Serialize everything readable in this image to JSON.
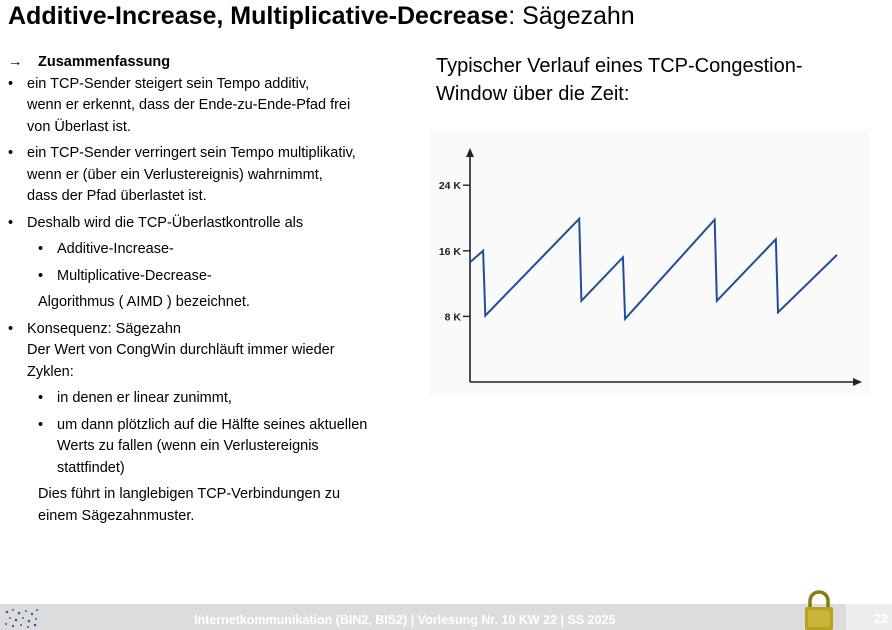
{
  "slide": {
    "title_bold": "Additive-Increase, Multiplicative-Decrease",
    "title_rest": ": Sägezahn",
    "summary_arrow": "→",
    "summary_heading": "Zusammenfassung",
    "bullet_char": "•",
    "bullets": [
      {
        "lines": [
          "ein TCP-Sender steigert sein Tempo additiv,",
          "wenn er erkennt, dass der Ende-zu-Ende-Pfad frei",
          "von Überlast ist."
        ]
      },
      {
        "lines": [
          "ein TCP-Sender verringert sein Tempo multiplikativ,",
          "wenn er (über ein Verlustereignis) wahrnimmt,",
          "dass der Pfad überlastet ist."
        ]
      },
      {
        "lines": [
          "Deshalb wird die TCP-Überlastkontrolle als"
        ]
      }
    ],
    "sub_bullets_a": [
      "Additive-Increase-",
      "Multiplicative-Decrease-"
    ],
    "aimd_line": "Algorithmus  ( AIMD ) bezeichnet.",
    "consequence": {
      "lines": [
        "Konsequenz: Sägezahn",
        "Der Wert von CongWin durchläuft immer wieder",
        "Zyklen:"
      ]
    },
    "sub_bullets_b": [
      {
        "lines": [
          "in denen er linear zunimmt,"
        ]
      },
      {
        "lines": [
          "um dann plötzlich auf die Hälfte seines aktuellen",
          "Werts zu fallen (wenn ein Verlustereignis",
          "stattfindet)"
        ]
      }
    ],
    "closing": [
      "Dies führt in langlebigen TCP-Verbindungen zu",
      "einem Sägezahnmuster."
    ],
    "right_heading": [
      "Typischer Verlauf eines TCP-Congestion-",
      "Window über die Zeit:"
    ]
  },
  "chart_data": {
    "type": "line",
    "title": "",
    "xlabel": "",
    "ylabel": "",
    "ylim": [
      0,
      28
    ],
    "yticks": [
      {
        "value": 8,
        "label": "8 K"
      },
      {
        "value": 16,
        "label": "16 K"
      },
      {
        "value": 24,
        "label": "24 K"
      }
    ],
    "grid": false,
    "series": [
      {
        "color": "#1f4e99",
        "x": [
          0,
          3,
          3.5,
          25,
          25.5,
          35,
          35.5,
          56,
          56.5,
          70,
          70.5,
          84
        ],
        "y": [
          14.6,
          16,
          8.1,
          19.9,
          9.9,
          15.2,
          7.7,
          19.8,
          9.9,
          17.4,
          8.5,
          15.5
        ]
      }
    ]
  },
  "footer": {
    "text": "Internetkommunikation (BIN2, BIS2) | Vorlesung Nr. 10 KW 22 | SS 2025",
    "page": "22"
  },
  "colors": {
    "line": "#1f4e99",
    "footer_bg": "#dcdcdc",
    "lock": "#b8a21e"
  },
  "icons": {
    "logo": "university-logo-icon",
    "lock": "padlock-icon"
  }
}
